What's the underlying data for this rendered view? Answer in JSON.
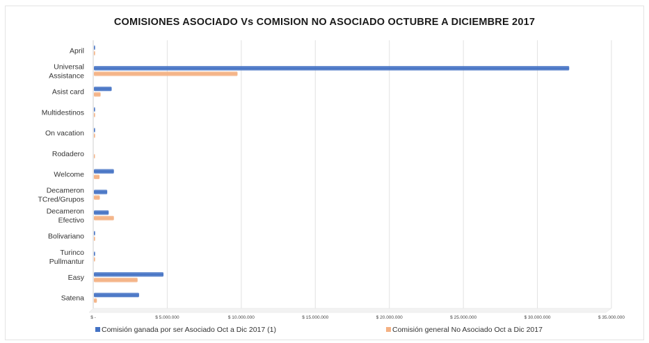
{
  "chart_data": {
    "type": "bar",
    "orientation": "horizontal",
    "title": "COMISIONES ASOCIADO Vs COMISION NO ASOCIADO OCTUBRE A DICIEMBRE 2017",
    "categories": [
      "April",
      "Universal Assistance",
      "Asist card",
      "Multidestinos",
      "On vacation",
      "Rodadero",
      "Welcome",
      "Decameron TCred/Grupos",
      "Decameron Efectivo",
      "Bolivariano",
      "Turinco Pullmantur",
      "Easy",
      "Satena"
    ],
    "category_lines": [
      [
        "April"
      ],
      [
        "Universal",
        "Assistance"
      ],
      [
        "Asist card"
      ],
      [
        "Multidestinos"
      ],
      [
        "On vacation"
      ],
      [
        "Rodadero"
      ],
      [
        "Welcome"
      ],
      [
        "Decameron",
        "TCred/Grupos"
      ],
      [
        "Decameron",
        "Efectivo"
      ],
      [
        "Bolivariano"
      ],
      [
        "Turinco",
        "Pullmantur"
      ],
      [
        "Easy"
      ],
      [
        "Satena"
      ]
    ],
    "series": [
      {
        "name": "Comisión ganada por ser Asociado Oct a Dic 2017 (1)",
        "color": "#4472C4",
        "values": [
          80000,
          32100000,
          1200000,
          80000,
          80000,
          0,
          1350000,
          900000,
          1000000,
          80000,
          80000,
          4700000,
          3050000
        ]
      },
      {
        "name": "Comisión general No Asociado Oct a Dic 2017",
        "color": "#F4B183",
        "values": [
          80000,
          9700000,
          450000,
          80000,
          80000,
          60000,
          380000,
          400000,
          1350000,
          80000,
          80000,
          2950000,
          200000
        ]
      }
    ],
    "xlim": [
      0,
      35000000
    ],
    "x_ticks": [
      0,
      5000000,
      10000000,
      15000000,
      20000000,
      25000000,
      30000000,
      35000000
    ],
    "x_tick_labels": [
      "$ -",
      "$ 5.000.000",
      "$ 10.000.000",
      "$ 15.000.000",
      "$ 20.000.000",
      "$ 25.000.000",
      "$ 30.000.000",
      "$ 35.000.000"
    ],
    "grid": true,
    "legend_position": "bottom"
  }
}
